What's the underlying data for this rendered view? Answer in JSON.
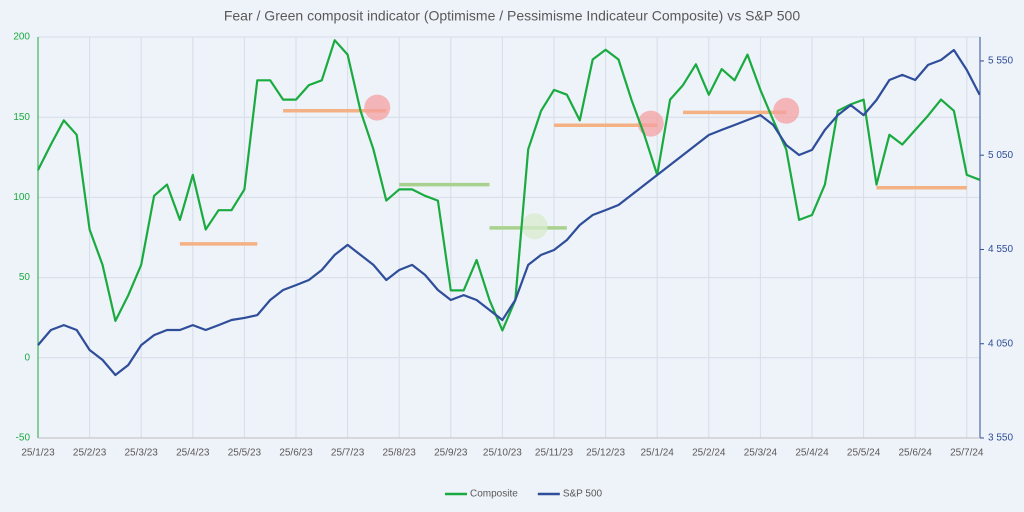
{
  "chart_data": {
    "type": "line",
    "title": "Fear / Green composit indicator (Optimisme / Pessimisme Indicateur Composite) vs S&P 500",
    "categories": [
      "25/1/23",
      null,
      null,
      null,
      "25/2/23",
      null,
      null,
      null,
      "25/3/23",
      null,
      null,
      null,
      "25/4/23",
      null,
      null,
      null,
      "25/5/23",
      null,
      null,
      null,
      "25/6/23",
      null,
      null,
      null,
      "25/7/23",
      null,
      null,
      null,
      "25/8/23",
      null,
      null,
      null,
      "25/9/23",
      null,
      null,
      null,
      "25/10/23",
      null,
      null,
      null,
      "25/11/23",
      null,
      null,
      null,
      "25/12/23",
      null,
      null,
      null,
      "25/1/24",
      null,
      null,
      null,
      "25/2/24",
      null,
      null,
      null,
      "25/3/24",
      null,
      null,
      null,
      "25/4/24",
      null,
      null,
      null,
      "25/5/24",
      null,
      null,
      null,
      "25/6/24",
      null,
      null,
      null,
      "25/7/24",
      null
    ],
    "series": [
      {
        "name": "Composite",
        "color": "#1aab40",
        "axis": "y",
        "values": [
          117,
          133,
          148,
          139,
          80,
          58,
          23,
          39,
          58,
          101,
          108,
          86,
          114,
          80,
          92,
          92,
          105,
          173,
          173,
          161,
          161,
          170,
          173,
          198,
          189,
          154,
          130,
          98,
          105,
          105,
          101,
          98,
          42,
          42,
          61,
          36,
          17,
          36,
          130,
          154,
          167,
          164,
          148,
          186,
          192,
          186,
          161,
          139,
          114,
          161,
          170,
          183,
          164,
          180,
          173,
          189,
          167,
          148,
          130,
          86,
          89,
          108,
          154,
          158,
          161,
          108,
          139,
          133,
          142,
          151,
          161,
          154,
          114,
          111
        ]
      },
      {
        "name": "S&P 500",
        "color": "#2e4e9a",
        "axis": "y2",
        "values": [
          4043,
          4123,
          4149,
          4123,
          4017,
          3964,
          3884,
          3937,
          4043,
          4096,
          4123,
          4123,
          4149,
          4123,
          4149,
          4176,
          4187,
          4202,
          4282,
          4335,
          4361,
          4388,
          4441,
          4521,
          4574,
          4521,
          4468,
          4388,
          4441,
          4468,
          4415,
          4335,
          4282,
          4308,
          4282,
          4229,
          4176,
          4282,
          4468,
          4521,
          4547,
          4600,
          4680,
          4733,
          4759,
          4786,
          4839,
          4892,
          4945,
          4998,
          5051,
          5104,
          5157,
          5184,
          5210,
          5237,
          5263,
          5210,
          5104,
          5051,
          5078,
          5184,
          5263,
          5316,
          5263,
          5343,
          5449,
          5476,
          5449,
          5529,
          5555,
          5608,
          5502,
          5370
        ]
      }
    ],
    "ylim": [
      -50,
      200
    ],
    "yticks": [
      -50,
      0,
      50,
      100,
      150,
      200
    ],
    "y2lim": [
      3550,
      5677
    ],
    "y2ticks": [
      {
        "value": 3550,
        "label": "3 550"
      },
      {
        "value": 4050,
        "label": "4 050"
      },
      {
        "value": 4550,
        "label": "4 550"
      },
      {
        "value": 5050,
        "label": "5 050"
      },
      {
        "value": 5550,
        "label": "5 550"
      }
    ],
    "grid": true,
    "legend": "bottom",
    "highlights": [
      {
        "y": 71,
        "x": [
          11,
          17
        ],
        "color": "#f4b183"
      },
      {
        "y": 154,
        "x": [
          19,
          27
        ],
        "color": "#f4b183"
      },
      {
        "y": 108,
        "x": [
          28,
          35
        ],
        "color": "#a9d18e"
      },
      {
        "y": 81,
        "x": [
          35,
          41
        ],
        "color": "#a9d18e"
      },
      {
        "y": 145,
        "x": [
          40,
          48
        ],
        "color": "#f4b183"
      },
      {
        "y": 153,
        "x": [
          50,
          58
        ],
        "color": "#f4b183"
      },
      {
        "y": 106,
        "x": [
          65,
          72
        ],
        "color": "#f4b183"
      }
    ],
    "circles": [
      {
        "x": 26.3,
        "y": 156,
        "color": "#f4a0a0"
      },
      {
        "x": 38.5,
        "y": 82,
        "color": "#d7ebcc"
      },
      {
        "x": 47.5,
        "y": 146,
        "color": "#f4a0a0"
      },
      {
        "x": 58,
        "y": 154,
        "color": "#f4a0a0"
      }
    ]
  }
}
